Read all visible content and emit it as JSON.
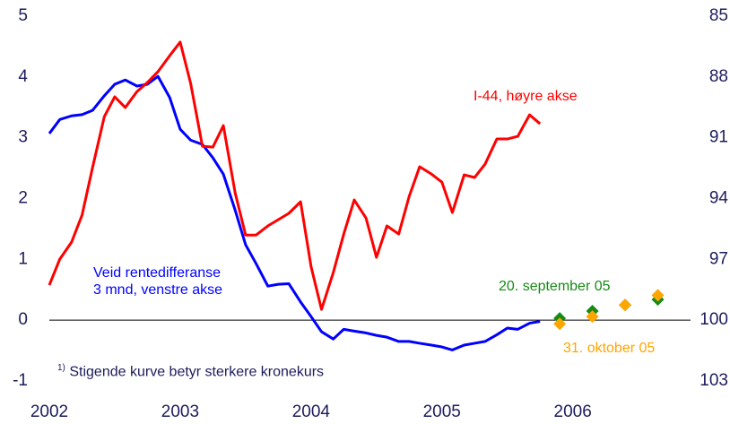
{
  "chart_data": {
    "type": "line",
    "x": [
      2002.0,
      2002.08,
      2002.17,
      2002.25,
      2002.33,
      2002.42,
      2002.5,
      2002.58,
      2002.67,
      2002.75,
      2002.83,
      2002.92,
      2003.0,
      2003.08,
      2003.17,
      2003.25,
      2003.33,
      2003.42,
      2003.5,
      2003.58,
      2003.67,
      2003.75,
      2003.83,
      2003.92,
      2004.0,
      2004.08,
      2004.17,
      2004.25,
      2004.33,
      2004.42,
      2004.5,
      2004.58,
      2004.67,
      2004.75,
      2004.83,
      2004.92,
      2005.0,
      2005.08,
      2005.17,
      2005.25,
      2005.33,
      2005.42,
      2005.5,
      2005.58,
      2005.67,
      2005.75
    ],
    "series": [
      {
        "name": "Veid rentedifferanse 3 mnd, venstre akse",
        "color": "#0000ff",
        "values": [
          3.07,
          3.3,
          3.36,
          3.38,
          3.45,
          3.69,
          3.88,
          3.95,
          3.85,
          3.88,
          4.01,
          3.66,
          3.14,
          2.96,
          2.89,
          2.67,
          2.4,
          1.81,
          1.24,
          0.93,
          0.56,
          0.59,
          0.6,
          0.3,
          0.06,
          -0.19,
          -0.31,
          -0.15,
          -0.18,
          -0.21,
          -0.25,
          -0.28,
          -0.35,
          -0.35,
          -0.38,
          -0.41,
          -0.44,
          -0.49,
          -0.41,
          -0.38,
          -0.35,
          -0.24,
          -0.13,
          -0.15,
          -0.05,
          -0.02
        ]
      },
      {
        "name": "I-44, høyre akse",
        "color": "#ff0000",
        "axis": "y2",
        "values": [
          98.27,
          96.99,
          96.15,
          94.82,
          92.48,
          89.96,
          88.98,
          89.51,
          88.72,
          88.27,
          87.74,
          86.95,
          86.28,
          88.32,
          91.42,
          91.46,
          90.4,
          93.72,
          95.8,
          95.8,
          95.35,
          95.04,
          94.73,
          94.16,
          97.35,
          99.47,
          97.65,
          95.75,
          94.07,
          94.96,
          96.9,
          95.35,
          95.75,
          93.89,
          92.43,
          92.79,
          93.19,
          94.69,
          92.83,
          92.96,
          92.3,
          91.06,
          91.06,
          90.93,
          89.87,
          90.31
        ]
      }
    ],
    "forecasts": [
      {
        "name": "20. september 05",
        "color": "#168a16",
        "x": [
          2005.9,
          2006.15,
          2006.4,
          2006.65
        ],
        "values": [
          0.03,
          0.15,
          0.25,
          0.34
        ]
      },
      {
        "name": "31. oktober 05",
        "color": "#ffa500",
        "x": [
          2005.9,
          2006.15,
          2006.4,
          2006.65
        ],
        "values": [
          -0.06,
          0.06,
          0.25,
          0.41
        ]
      }
    ],
    "xlim": [
      2002,
      2006.9
    ],
    "xticks": [
      2002,
      2003,
      2004,
      2005,
      2006
    ],
    "ylim": [
      -1,
      5
    ],
    "yticks": [
      -1,
      0,
      1,
      2,
      3,
      4,
      5
    ],
    "y2lim": [
      103,
      85
    ],
    "y2ticks": [
      85,
      88,
      91,
      94,
      97,
      100,
      103
    ],
    "zero_line": true,
    "footnote_marker": "1)",
    "footnote": "Stigende kurve betyr sterkere kronekurs"
  }
}
